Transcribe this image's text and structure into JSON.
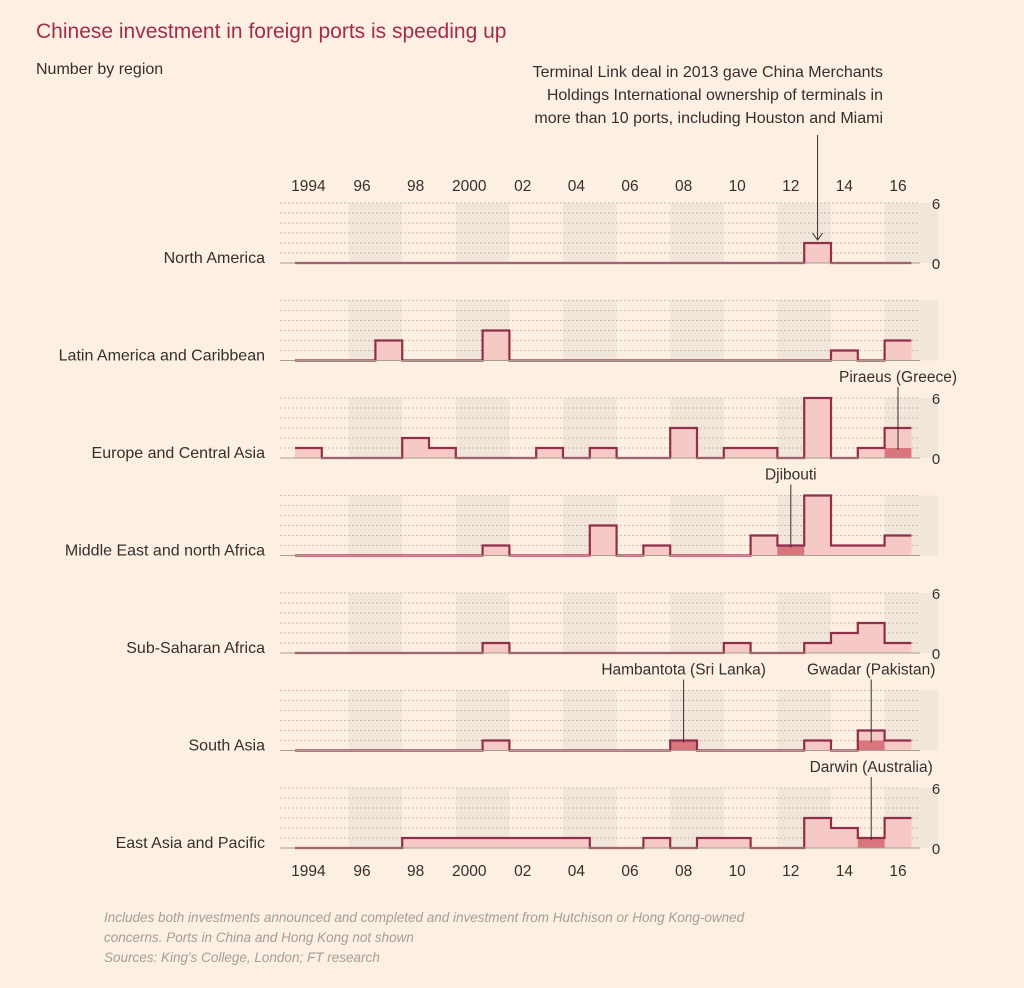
{
  "title": "Chinese investment in foreign ports is speeding up",
  "subtitle": "Number by region",
  "footnote": {
    "line1": "Includes both investments announced and completed and investment from Hutchison or Hong Kong-owned",
    "line2": "concerns. Ports in China and Hong Kong not shown",
    "line3": "Sources: King's College, London; FT research"
  },
  "colors": {
    "background": "#fdf0e3",
    "line": "#8f2f4a",
    "fill": "#f6c9c6",
    "highlight": "#d9757c",
    "title": "#a32c4d",
    "band": "#f2e6da"
  },
  "chart_data": {
    "type": "area",
    "step": true,
    "x_start": 1994,
    "x_end": 2016,
    "x_tick_labels": [
      "1994",
      "96",
      "98",
      "2000",
      "02",
      "04",
      "06",
      "08",
      "10",
      "12",
      "14",
      "16"
    ],
    "ylim": [
      0,
      6
    ],
    "y_tick_labels": [
      "0",
      "6"
    ],
    "series": [
      {
        "name": "North America",
        "values": [
          0,
          0,
          0,
          0,
          0,
          0,
          0,
          0,
          0,
          0,
          0,
          0,
          0,
          0,
          0,
          0,
          0,
          0,
          0,
          2,
          0,
          0,
          0
        ],
        "show_y_ticks": true
      },
      {
        "name": "Latin America and Caribbean",
        "values": [
          0,
          0,
          0,
          2,
          0,
          0,
          0,
          3,
          0,
          0,
          0,
          0,
          0,
          0,
          0,
          0,
          0,
          0,
          0,
          0,
          1,
          0,
          2
        ],
        "show_y_ticks": false
      },
      {
        "name": "Europe and Central Asia",
        "values": [
          1,
          0,
          0,
          0,
          2,
          1,
          0,
          0,
          0,
          1,
          0,
          1,
          0,
          0,
          3,
          0,
          1,
          1,
          0,
          6,
          0,
          1,
          3
        ],
        "show_y_ticks": true
      },
      {
        "name": "Middle East and north Africa",
        "values": [
          0,
          0,
          0,
          0,
          0,
          0,
          0,
          1,
          0,
          0,
          0,
          3,
          0,
          1,
          0,
          0,
          0,
          2,
          1,
          6,
          1,
          1,
          2
        ],
        "show_y_ticks": false
      },
      {
        "name": "Sub-Saharan Africa",
        "values": [
          0,
          0,
          0,
          0,
          0,
          0,
          0,
          1,
          0,
          0,
          0,
          0,
          0,
          0,
          0,
          0,
          1,
          0,
          0,
          1,
          2,
          3,
          1
        ],
        "show_y_ticks": true
      },
      {
        "name": "South Asia",
        "values": [
          0,
          0,
          0,
          0,
          0,
          0,
          0,
          1,
          0,
          0,
          0,
          0,
          0,
          0,
          1,
          0,
          0,
          0,
          0,
          1,
          0,
          2,
          1
        ],
        "show_y_ticks": false
      },
      {
        "name": "East Asia and Pacific",
        "values": [
          0,
          0,
          0,
          0,
          1,
          1,
          1,
          1,
          1,
          1,
          1,
          0,
          0,
          1,
          0,
          1,
          1,
          0,
          0,
          3,
          2,
          1,
          3
        ],
        "show_y_ticks": true
      }
    ],
    "highlights": [
      {
        "series": 2,
        "year": 2016,
        "value": 1
      },
      {
        "series": 3,
        "year": 2012,
        "value": 1
      },
      {
        "series": 5,
        "year": 2008,
        "value": 1
      },
      {
        "series": 5,
        "year": 2015,
        "value": 1
      },
      {
        "series": 6,
        "year": 2015,
        "value": 1
      }
    ],
    "annotations": [
      {
        "series": 0,
        "year": 2013,
        "arrow": true,
        "lines": [
          "Terminal Link deal in 2013 gave China Merchants",
          "Holdings International ownership of terminals in",
          "more than 10 ports, including Houston and Miami"
        ]
      },
      {
        "series": 2,
        "year": 2016,
        "lines": [
          "Piraeus (Greece)"
        ]
      },
      {
        "series": 3,
        "year": 2012,
        "lines": [
          "Djibouti"
        ]
      },
      {
        "series": 5,
        "year": 2008,
        "lines": [
          "Hambantota (Sri Lanka)"
        ]
      },
      {
        "series": 5,
        "year": 2015,
        "lines": [
          "Gwadar (Pakistan)"
        ]
      },
      {
        "series": 6,
        "year": 2015,
        "lines": [
          "Darwin (Australia)"
        ]
      }
    ]
  }
}
